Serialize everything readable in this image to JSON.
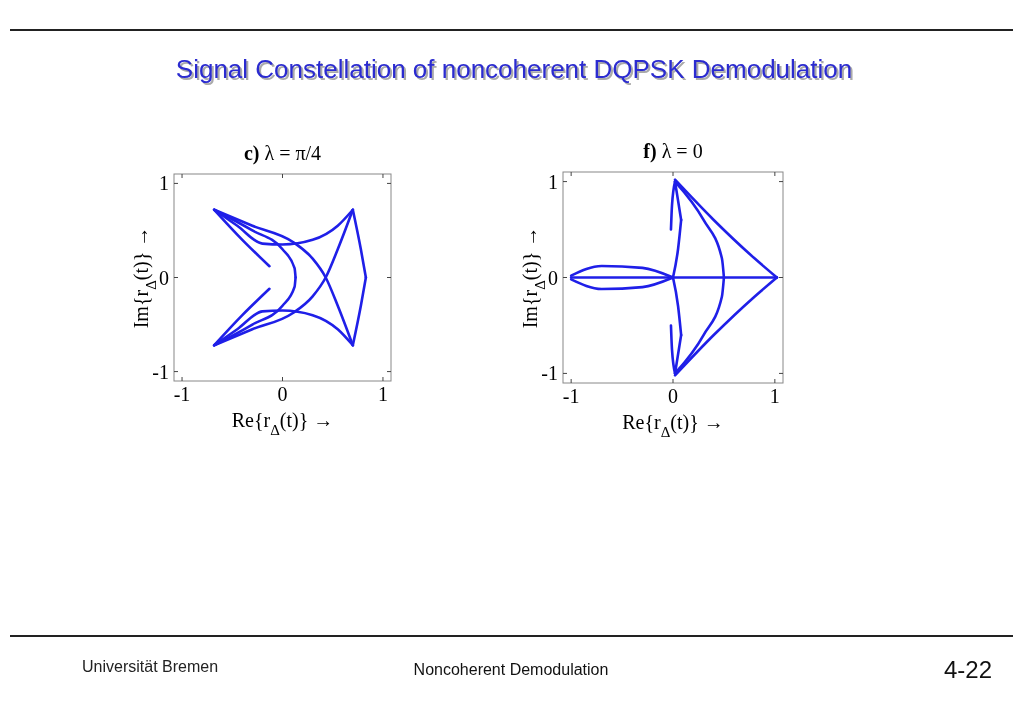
{
  "chart_data": [
    {
      "type": "line",
      "title": "c) λ = π/4",
      "xlabel": "Re{r$_{Δ}$(t)}   →",
      "ylabel": "Im{r$_{Δ}$(t)}   →",
      "xlim": [
        -1.08,
        1.08
      ],
      "ylim": [
        -1.1,
        1.1
      ],
      "xticks": [
        -1,
        0,
        1
      ],
      "yticks": [
        -1,
        0,
        1
      ],
      "grid": false,
      "marker": "none",
      "line_style": "solid",
      "annotations": [
        "Signal Constellation of noncoherent DQPSK Demodulation",
        "Universität Bremen",
        "Noncoherent Demodulation",
        "4-22"
      ],
      "series": [
        {
          "color": "#1f1fe8",
          "x": [
            -0.68,
            -0.3,
            0,
            0.12,
            0.13
          ],
          "values": [
            0.72,
            0.5,
            0.3,
            0.1,
            0
          ]
        },
        {
          "color": "#1f1fe8",
          "x": [
            -0.68,
            -0.3,
            0,
            0.12,
            0.13
          ],
          "values": [
            -0.72,
            -0.5,
            -0.3,
            -0.1,
            0
          ]
        },
        {
          "color": "#1f1fe8",
          "x": [
            -0.68,
            -0.3,
            0.1,
            0.3,
            0.43,
            0.55,
            0.7
          ],
          "values": [
            0.72,
            0.55,
            0.38,
            0.2,
            0,
            -0.3,
            -0.72
          ]
        },
        {
          "color": "#1f1fe8",
          "x": [
            -0.68,
            -0.3,
            0.1,
            0.3,
            0.43,
            0.55,
            0.7
          ],
          "values": [
            -0.72,
            -0.55,
            -0.38,
            -0.2,
            0,
            0.3,
            0.72
          ]
        },
        {
          "color": "#1f1fe8",
          "x": [
            0.7,
            0.78,
            0.83
          ],
          "values": [
            0.72,
            0.3,
            0
          ]
        },
        {
          "color": "#1f1fe8",
          "x": [
            0.7,
            0.78,
            0.83
          ],
          "values": [
            -0.72,
            -0.3,
            0
          ]
        },
        {
          "color": "#1f1fe8",
          "x": [
            -0.68,
            -0.45,
            -0.2,
            0,
            0.3,
            0.55,
            0.7
          ],
          "values": [
            0.72,
            0.55,
            0.36,
            0.35,
            0.4,
            0.55,
            0.72
          ]
        },
        {
          "color": "#1f1fe8",
          "x": [
            -0.68,
            -0.45,
            -0.2,
            0,
            0.3,
            0.55,
            0.7
          ],
          "values": [
            -0.72,
            -0.55,
            -0.36,
            -0.35,
            -0.4,
            -0.55,
            -0.72
          ]
        },
        {
          "color": "#1f1fe8",
          "x": [
            -0.68,
            -0.4,
            -0.13
          ],
          "values": [
            0.72,
            0.4,
            0.12
          ]
        },
        {
          "color": "#1f1fe8",
          "x": [
            -0.68,
            -0.4,
            -0.13
          ],
          "values": [
            -0.72,
            -0.4,
            -0.12
          ]
        }
      ]
    },
    {
      "type": "line",
      "title": "f) λ = 0",
      "xlabel": "Re{r$_{Δ}$(t)}   →",
      "ylabel": "Im{r$_{Δ}$(t)}   →",
      "xlim": [
        -1.08,
        1.08
      ],
      "ylim": [
        -1.1,
        1.1
      ],
      "xticks": [
        -1,
        0,
        1
      ],
      "yticks": [
        -1,
        0,
        1
      ],
      "grid": false,
      "marker": "none",
      "line_style": "solid",
      "series": [
        {
          "color": "#1f1fe8",
          "x": [
            -1,
            1.02
          ],
          "values": [
            0,
            0
          ]
        },
        {
          "color": "#1f1fe8",
          "x": [
            -1,
            -0.7,
            -0.3,
            0
          ],
          "values": [
            0.02,
            0.12,
            0.1,
            0
          ]
        },
        {
          "color": "#1f1fe8",
          "x": [
            -1,
            -0.7,
            -0.3,
            0
          ],
          "values": [
            -0.02,
            -0.12,
            -0.1,
            0
          ]
        },
        {
          "color": "#1f1fe8",
          "x": [
            0.02,
            0.4,
            0.8,
            1.02
          ],
          "values": [
            1.02,
            0.6,
            0.2,
            0
          ]
        },
        {
          "color": "#1f1fe8",
          "x": [
            0.02,
            0.4,
            0.8,
            1.02
          ],
          "values": [
            -1.02,
            -0.6,
            -0.2,
            0
          ]
        },
        {
          "color": "#1f1fe8",
          "x": [
            0.02,
            0.3,
            0.48,
            0.5
          ],
          "values": [
            1,
            0.6,
            0.2,
            0
          ]
        },
        {
          "color": "#1f1fe8",
          "x": [
            0.02,
            0.3,
            0.48,
            0.5
          ],
          "values": [
            -1,
            -0.6,
            -0.2,
            0
          ]
        },
        {
          "color": "#1f1fe8",
          "x": [
            0,
            0.05,
            0.08
          ],
          "values": [
            0,
            0.3,
            0.6
          ]
        },
        {
          "color": "#1f1fe8",
          "x": [
            0,
            0.05,
            0.08
          ],
          "values": [
            0,
            -0.3,
            -0.6
          ]
        },
        {
          "color": "#1f1fe8",
          "x": [
            0.02,
            0.08
          ],
          "values": [
            1,
            0.6
          ]
        },
        {
          "color": "#1f1fe8",
          "x": [
            0.02,
            0.08
          ],
          "values": [
            -1,
            -0.6
          ]
        },
        {
          "color": "#1f1fe8",
          "x": [
            -0.02,
            -0.01,
            0.02
          ],
          "values": [
            0.5,
            0.75,
            1
          ]
        },
        {
          "color": "#1f1fe8",
          "x": [
            -0.02,
            -0.01,
            0.02
          ],
          "values": [
            -0.5,
            -0.75,
            -1
          ]
        }
      ]
    }
  ]
}
